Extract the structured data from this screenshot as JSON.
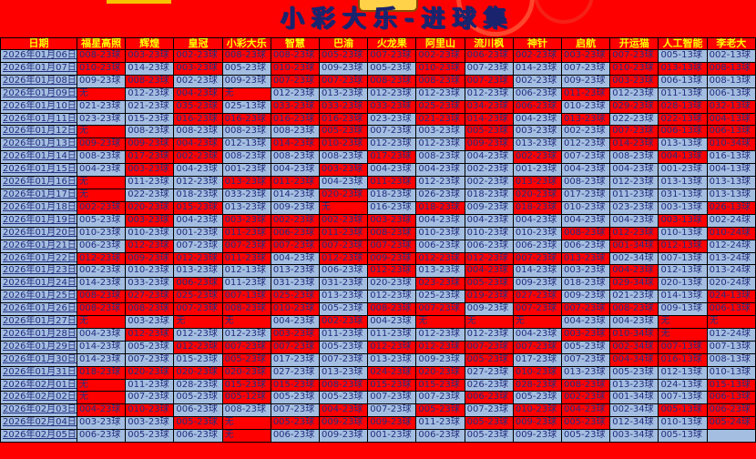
{
  "title": "小彩大乐-进球集",
  "colors": {
    "background_red": "#FF0000",
    "cell_blue": "#A4BEE1",
    "cell_red": "#FF0000",
    "header_text": "#FFFF00",
    "body_text": "#232D7E",
    "title_text": "#1A246E",
    "grid_border": "#000000"
  },
  "none_label": "无",
  "table": {
    "columns": [
      "日期",
      "福星高照",
      "辉煌",
      "皇冠",
      "小彩大乐",
      "智慧",
      "巴渝",
      "火龙果",
      "阿里山",
      "流川枫",
      "神针",
      "启航",
      "开运猫",
      "人工智能",
      "李老大"
    ],
    "rows": [
      {
        "date": "2026年01月06日",
        "cells": [
          "008-23球|r",
          "003-23球|r",
          "002-23球|r",
          "008-23球|r",
          "008-23球|r",
          "005-23球|r",
          "007-23球|r",
          "002-23球|r",
          "006-23球|r",
          "002-23球|r",
          "003-23球|r",
          "007-23球|r",
          "005-13球|b",
          "002-13球|b"
        ]
      },
      {
        "date": "2026年01月07日",
        "cells": [
          "010-23球|r",
          "014-23球|b",
          "003-23球|r",
          "005-23球|b",
          "010-23球|r",
          "009-23球|b",
          "005-23球|b",
          "010-23球|r",
          "007-23球|b",
          "014-23球|b",
          "007-23球|b",
          "010-23球|r",
          "013-13球|r",
          "008-13球|r"
        ]
      },
      {
        "date": "2026年01月08日",
        "cells": [
          "009-23球|b",
          "008-23球|r",
          "002-23球|b",
          "009-23球|b",
          "007-23球|r",
          "007-23球|r",
          "008-23球|r",
          "008-23球|r",
          "007-23球|r",
          "002-23球|b",
          "009-23球|b",
          "003-23球|r",
          "006-13球|b",
          "008-13球|b"
        ]
      },
      {
        "date": "2026年01月09日",
        "cells": [
          "无|r",
          "012-23球|b",
          "004-23球|r",
          "无|r",
          "012-23球|b",
          "013-23球|b",
          "012-23球|b",
          "012-23球|b",
          "012-23球|b",
          "006-23球|b",
          "011-23球|r",
          "012-23球|b",
          "011-13球|b",
          "006-13球|b"
        ]
      },
      {
        "date": "2026年01月10日",
        "cells": [
          "021-23球|b",
          "021-23球|b",
          "035-23球|r",
          "025-13球|b",
          "033-23球|r",
          "033-23球|r",
          "033-23球|r",
          "025-23球|r",
          "034-23球|r",
          "006-23球|r",
          "010-23球|b",
          "029-23球|r",
          "028-13球|r",
          "032-13球|r"
        ]
      },
      {
        "date": "2026年01月11日",
        "cells": [
          "023-23球|b",
          "015-23球|b",
          "016-23球|r",
          "016-23球|r",
          "016-23球|r",
          "016-23球|r",
          "023-23球|b",
          "021-23球|r",
          "014-23球|r",
          "004-23球|b",
          "013-23球|r",
          "022-23球|b",
          "022-13球|r",
          "004-13球|r"
        ]
      },
      {
        "date": "2026年01月12日",
        "cells": [
          "无|r",
          "008-23球|b",
          "008-23球|b",
          "008-23球|b",
          "008-23球|b",
          "005-23球|r",
          "007-23球|b",
          "003-23球|b",
          "005-23球|r",
          "003-23球|b",
          "002-23球|b",
          "007-23球|r",
          "006-13球|r",
          "006-13球|r"
        ]
      },
      {
        "date": "2026年01月13日",
        "cells": [
          "009-23球|r",
          "009-23球|r",
          "004-23球|r",
          "012-13球|b",
          "014-23球|r",
          "010-23球|r",
          "012-23球|b",
          "012-23球|b",
          "009-23球|r",
          "013-23球|b",
          "012-23球|b",
          "014-23球|r",
          "013-13球|b",
          "010-34球|r"
        ]
      },
      {
        "date": "2026年01月14日",
        "cells": [
          "008-23球|b",
          "017-23球|r",
          "002-23球|r",
          "008-23球|b",
          "008-23球|b",
          "008-23球|b",
          "017-23球|r",
          "008-23球|b",
          "004-23球|b",
          "002-23球|r",
          "007-23球|b",
          "008-23球|b",
          "004-13球|r",
          "016-13球|b"
        ]
      },
      {
        "date": "2026年01月15日",
        "cells": [
          "004-23球|b",
          "003-23球|r",
          "004-23球|b",
          "001-23球|b",
          "004-23球|b",
          "003-23球|r",
          "004-23球|b",
          "004-23球|b",
          "002-23球|b",
          "001-23球|b",
          "004-23球|b",
          "004-23球|b",
          "001-23球|b",
          "004-13球|b"
        ]
      },
      {
        "date": "2026年01月16日",
        "cells": [
          "无|r",
          "011-23球|b",
          "012-23球|b",
          "013-23球|r",
          "011-23球|r",
          "004-23球|b",
          "011-23球|r",
          "012-23球|b",
          "002-23球|b",
          "013-23球|r",
          "008-23球|b",
          "012-23球|b",
          "013-13球|b",
          "013-13球|b"
        ]
      },
      {
        "date": "2026年01月17日",
        "cells": [
          "无|r",
          "022-23球|b",
          "018-23球|b",
          "033-23球|b",
          "014-23球|b",
          "020-23球|r",
          "018-23球|b",
          "026-23球|b",
          "018-23球|b",
          "020-23球|r",
          "017-23球|b",
          "011-23球|b",
          "031-13球|b",
          "013-13球|b"
        ]
      },
      {
        "date": "2026年01月18日",
        "cells": [
          "002-23球|r",
          "020-23球|r",
          "015-23球|r",
          "013-23球|b",
          "009-23球|b",
          "无|r",
          "016-23球|b",
          "018-23球|r",
          "009-23球|b",
          "018-23球|r",
          "010-23球|b",
          "023-23球|b",
          "003-13球|b",
          "026-13球|r"
        ]
      },
      {
        "date": "2026年01月19日",
        "cells": [
          "005-23球|b",
          "003-23球|r",
          "004-23球|b",
          "003-23球|r",
          "002-23球|r",
          "002-23球|r",
          "003-23球|r",
          "004-23球|b",
          "004-23球|b",
          "004-23球|b",
          "004-23球|b",
          "004-23球|b",
          "003-13球|r",
          "002-24球|b"
        ]
      },
      {
        "date": "2026年01月20日",
        "cells": [
          "010-23球|b",
          "010-23球|b",
          "001-23球|b",
          "011-23球|r",
          "006-23球|r",
          "011-23球|r",
          "008-23球|r",
          "010-23球|b",
          "010-23球|b",
          "010-23球|b",
          "008-23球|r",
          "012-23球|r",
          "010-13球|b",
          "010-24球|r"
        ]
      },
      {
        "date": "2026年01月21日",
        "cells": [
          "006-23球|b",
          "012-23球|r",
          "007-23球|b",
          "007-23球|r",
          "007-23球|r",
          "007-23球|r",
          "007-23球|r",
          "006-23球|b",
          "006-23球|b",
          "006-23球|b",
          "006-23球|b",
          "001-34球|r",
          "012-13球|r",
          "012-24球|b"
        ]
      },
      {
        "date": "2026年01月22日",
        "cells": [
          "012-23球|r",
          "009-23球|r",
          "012-23球|r",
          "011-23球|r",
          "004-23球|b",
          "012-23球|r",
          "009-23球|r",
          "012-23球|r",
          "012-23球|r",
          "007-23球|r",
          "013-23球|r",
          "002-34球|b",
          "007-13球|b",
          "013-24球|b"
        ]
      },
      {
        "date": "2026年01月23日",
        "cells": [
          "002-23球|b",
          "010-23球|b",
          "013-23球|b",
          "012-13球|b",
          "013-23球|b",
          "006-23球|b",
          "012-23球|r",
          "013-23球|b",
          "004-23球|r",
          "014-23球|b",
          "003-23球|b",
          "004-23球|r",
          "012-13球|b",
          "013-24球|b"
        ]
      },
      {
        "date": "2026年01月24日",
        "cells": [
          "014-23球|b",
          "033-23球|b",
          "006-23球|r",
          "011-23球|b",
          "031-23球|b",
          "031-23球|b",
          "020-23球|b",
          "023-23球|r",
          "005-23球|r",
          "009-23球|b",
          "018-23球|b",
          "029-34球|r",
          "020-13球|b",
          "020-24球|b"
        ]
      },
      {
        "date": "2026年01月25日",
        "cells": [
          "008-23球|r",
          "027-23球|r",
          "025-23球|r",
          "007-13球|r",
          "025-23球|r",
          "013-23球|b",
          "012-23球|b",
          "025-23球|b",
          "019-23球|r",
          "027-23球|r",
          "009-23球|b",
          "021-23球|b",
          "014-13球|b",
          "024-13球|r"
        ]
      },
      {
        "date": "2026年01月26日",
        "cells": [
          "008-23球|r",
          "008-23球|r",
          "007-23球|r",
          "008-23球|r",
          "010-23球|r",
          "005-23球|b",
          "008-23球|r",
          "007-23球|r",
          "009-23球|b",
          "007-23球|r",
          "007-23球|r",
          "008-23球|r",
          "009-13球|b",
          "006-13球|r"
        ]
      },
      {
        "date": "2026年01月27日",
        "cells": [
          "无|r",
          "003-23球|b",
          "无|r",
          "无|r",
          "004-23球|b",
          "002-23球|r",
          "004-23球|b",
          "无|r",
          "无|r",
          "无|r",
          "004-23球|b",
          "004-23球|b",
          "无|r",
          "无|r"
        ]
      },
      {
        "date": "2026年01月28日",
        "cells": [
          "004-23球|b",
          "012-23球|r",
          "012-23球|b",
          "012-23球|b",
          "003-23球|r",
          "011-23球|b",
          "011-23球|b",
          "012-23球|b",
          "012-23球|b",
          "004-23球|b",
          "003-23球|r",
          "010-34球|r",
          "无|r",
          "012-24球|b"
        ]
      },
      {
        "date": "2026年01月29日",
        "cells": [
          "014-23球|b",
          "005-23球|b",
          "012-23球|r",
          "007-23球|r",
          "007-23球|r",
          "005-23球|b",
          "012-23球|r",
          "012-23球|r",
          "007-23球|r",
          "007-23球|r",
          "005-23球|b",
          "002-34球|r",
          "007-13球|r",
          "007-13球|b"
        ]
      },
      {
        "date": "2026年01月30日",
        "cells": [
          "014-23球|b",
          "007-23球|b",
          "015-23球|b",
          "005-23球|r",
          "017-23球|b",
          "007-23球|b",
          "013-23球|b",
          "009-23球|b",
          "005-23球|r",
          "017-23球|b",
          "007-23球|b",
          "004-34球|r",
          "016-13球|r",
          "008-13球|b"
        ]
      },
      {
        "date": "2026年01月31日",
        "cells": [
          "018-23球|r",
          "020-23球|r",
          "020-23球|r",
          "020-23球|r",
          "027-23球|b",
          "013-23球|b",
          "024-23球|r",
          "020-23球|r",
          "027-23球|b",
          "010-23球|r",
          "013-23球|b",
          "005-23球|b",
          "012-13球|b",
          "010-13球|b"
        ]
      },
      {
        "date": "2026年02月01日",
        "cells": [
          "无|r",
          "011-23球|b",
          "028-23球|b",
          "015-23球|r",
          "015-23球|r",
          "008-23球|r",
          "015-23球|r",
          "015-23球|r",
          "026-23球|b",
          "028-23球|r",
          "008-23球|r",
          "013-23球|b",
          "024-13球|b",
          "015-13球|r"
        ]
      },
      {
        "date": "2026年02月02日",
        "cells": [
          "无|r",
          "007-23球|b",
          "005-23球|b",
          "005-12球|r",
          "005-23球|b",
          "005-23球|b",
          "007-23球|b",
          "007-23球|b",
          "006-23球|r",
          "005-23球|b",
          "002-23球|r",
          "001-34球|b",
          "007-13球|b",
          "006-13球|r"
        ]
      },
      {
        "date": "2026年02月03日",
        "cells": [
          "004-23球|r",
          "010-23球|r",
          "006-23球|b",
          "008-23球|b",
          "007-23球|b",
          "004-23球|r",
          "007-23球|b",
          "005-23球|r",
          "007-23球|b",
          "010-23球|r",
          "004-23球|r",
          "002-34球|b",
          "005-13球|r",
          "006-23球|r"
        ]
      },
      {
        "date": "2026年02月04日",
        "cells": [
          "003-23球|b",
          "003-23球|b",
          "005-23球|r",
          "无|r",
          "005-23球|r",
          "009-23球|r",
          "009-23球|r",
          "011-23球|b",
          "005-23球|r",
          "009-23球|r",
          "005-23球|r",
          "012-34球|b",
          "010-13球|b",
          "005-24球|r"
        ]
      },
      {
        "date": "2026年02月05日",
        "cells": [
          "006-23球|b",
          "005-23球|b",
          "006-23球|b",
          "无|r",
          "006-23球|b",
          "009-23球|b",
          "001-23球|b",
          "006-23球|b",
          "005-23球|b",
          "009-23球|b",
          "005-23球|b",
          "003-34球|b",
          "005-13球|b",
          "|b"
        ]
      }
    ]
  }
}
